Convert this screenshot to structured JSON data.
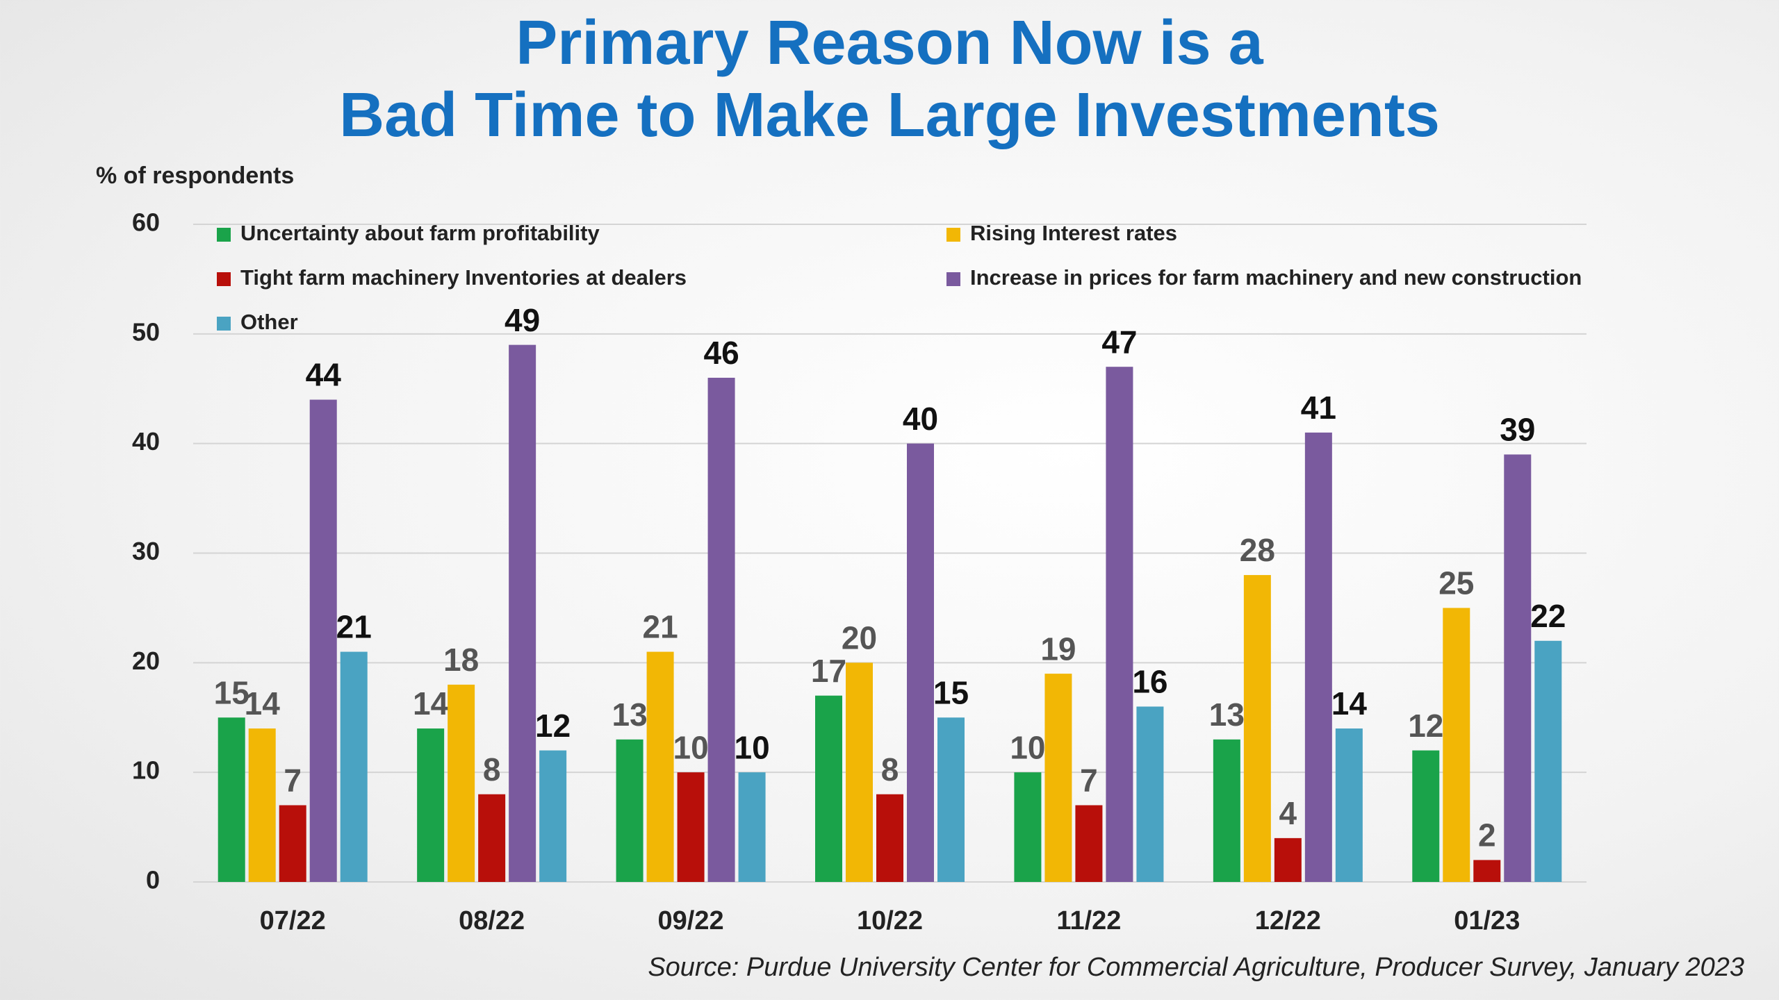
{
  "chart_data": {
    "type": "bar",
    "title": [
      "Primary Reason Now is a",
      "Bad Time to Make Large Investments"
    ],
    "y_axis_label": "% of respondents",
    "source": "Source: Purdue University Center for Commercial Agriculture, Producer Survey, January 2023",
    "categories": [
      "07/22",
      "08/22",
      "09/22",
      "10/22",
      "11/22",
      "12/22",
      "01/23"
    ],
    "series": [
      {
        "name": "Uncertainty about farm profitability",
        "color": "#1aa34a",
        "values": [
          15,
          14,
          13,
          17,
          10,
          13,
          12
        ]
      },
      {
        "name": "Rising Interest rates",
        "color": "#f2b705",
        "values": [
          14,
          18,
          21,
          20,
          19,
          28,
          25
        ]
      },
      {
        "name": "Tight farm machinery Inventories at dealers",
        "color": "#b80f0a",
        "values": [
          7,
          8,
          10,
          8,
          7,
          4,
          2
        ]
      },
      {
        "name": "Increase in prices for farm machinery and new construction",
        "color": "#7a5a9e",
        "values": [
          44,
          49,
          46,
          40,
          47,
          41,
          39
        ]
      },
      {
        "name": "Other",
        "color": "#4aa3c2",
        "values": [
          21,
          12,
          10,
          15,
          16,
          14,
          22
        ]
      }
    ],
    "ylim": [
      0,
      60
    ],
    "yticks": [
      0,
      10,
      20,
      30,
      40,
      50,
      60
    ],
    "grid": true
  }
}
